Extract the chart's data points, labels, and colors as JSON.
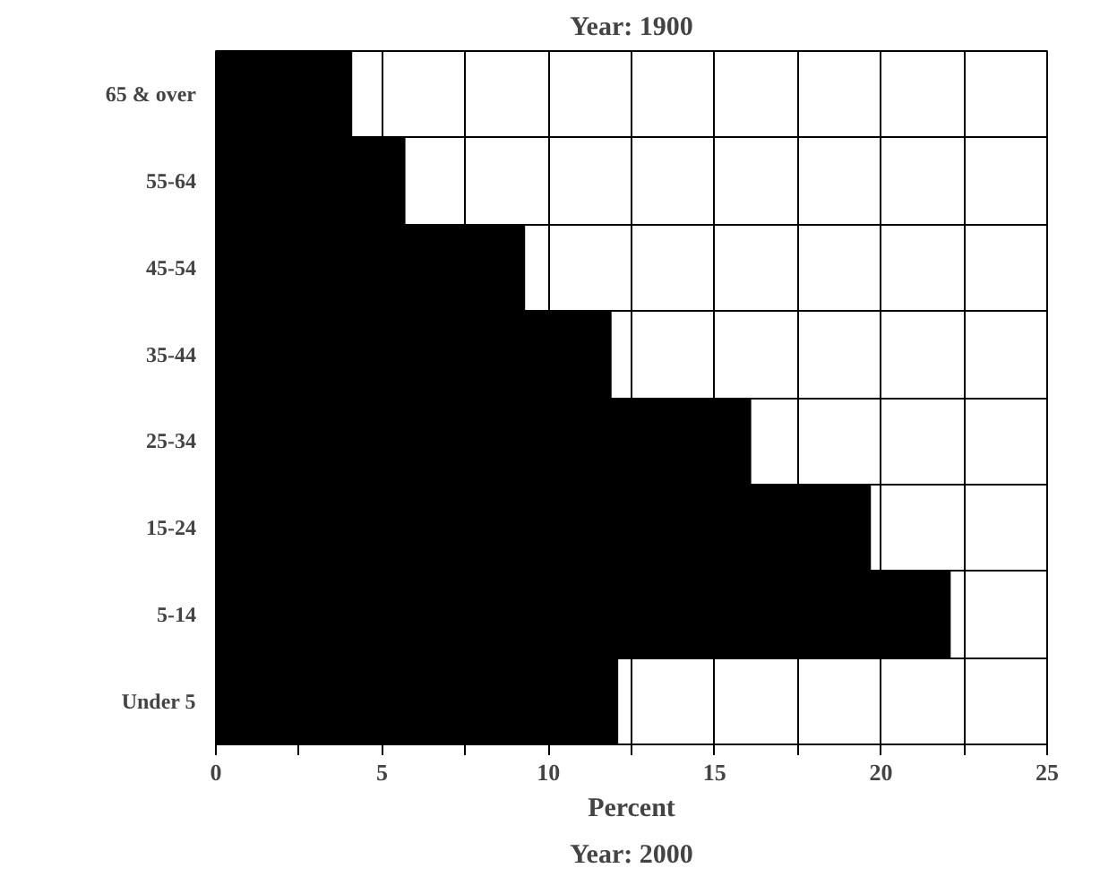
{
  "chart_data": {
    "type": "bar",
    "orientation": "horizontal",
    "title": "Year: 1900",
    "xlabel": "Percent",
    "annotations": [
      "Year: 2000"
    ],
    "categories": [
      "65 & over",
      "55-64",
      "45-54",
      "35-44",
      "25-34",
      "15-24",
      "5-14",
      "Under 5"
    ],
    "values": [
      4.1,
      5.7,
      9.3,
      11.9,
      16.1,
      19.7,
      22.1,
      12.1
    ],
    "color": "#000000",
    "xlim": [
      0,
      25
    ],
    "xticks": [
      0,
      {
        "value": 2.5,
        "label": null
      },
      5,
      {
        "value": 7.5,
        "label": null
      },
      10,
      {
        "value": 12.5,
        "label": null
      },
      15,
      {
        "value": 17.5,
        "label": null
      },
      20,
      {
        "value": 22.5,
        "label": null
      },
      25
    ],
    "grid": true
  }
}
